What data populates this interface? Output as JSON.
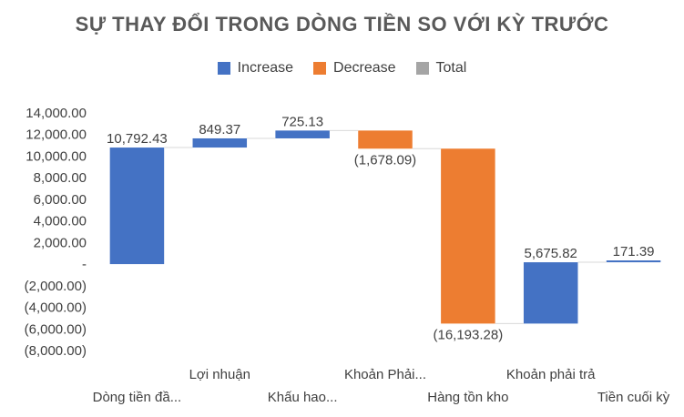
{
  "chart_data": {
    "type": "waterfall",
    "title": "SỰ THAY ĐỔI TRONG DÒNG TIỀN SO VỚI KỲ TRƯỚC",
    "legend": {
      "position": "top",
      "items": [
        {
          "name": "Increase",
          "color": "#4472C4"
        },
        {
          "name": "Decrease",
          "color": "#ED7D31"
        },
        {
          "name": "Total",
          "color": "#A5A5A5"
        }
      ]
    },
    "categories": [
      "Dòng tiền đầ...",
      "Lợi nhuận",
      "Khấu hao...",
      "Khoản Phải...",
      "Hàng tồn kho",
      "Khoản phải trả",
      "Tiền cuối kỳ"
    ],
    "values": [
      10792.43,
      849.37,
      725.13,
      -1678.09,
      -16193.28,
      5675.82,
      171.39
    ],
    "data_labels": [
      "10,792.43",
      "849.37",
      "725.13",
      "(1,678.09)",
      "(16,193.28)",
      "5,675.82",
      "171.39"
    ],
    "y_ticks": [
      "14,000.00",
      "12,000.00",
      "10,000.00",
      "8,000.00",
      "6,000.00",
      "4,000.00",
      "2,000.00",
      "-",
      "(2,000.00)",
      "(4,000.00)",
      "(6,000.00)",
      "(8,000.00)"
    ],
    "ylim": [
      -8000,
      14000
    ],
    "grid": false
  }
}
